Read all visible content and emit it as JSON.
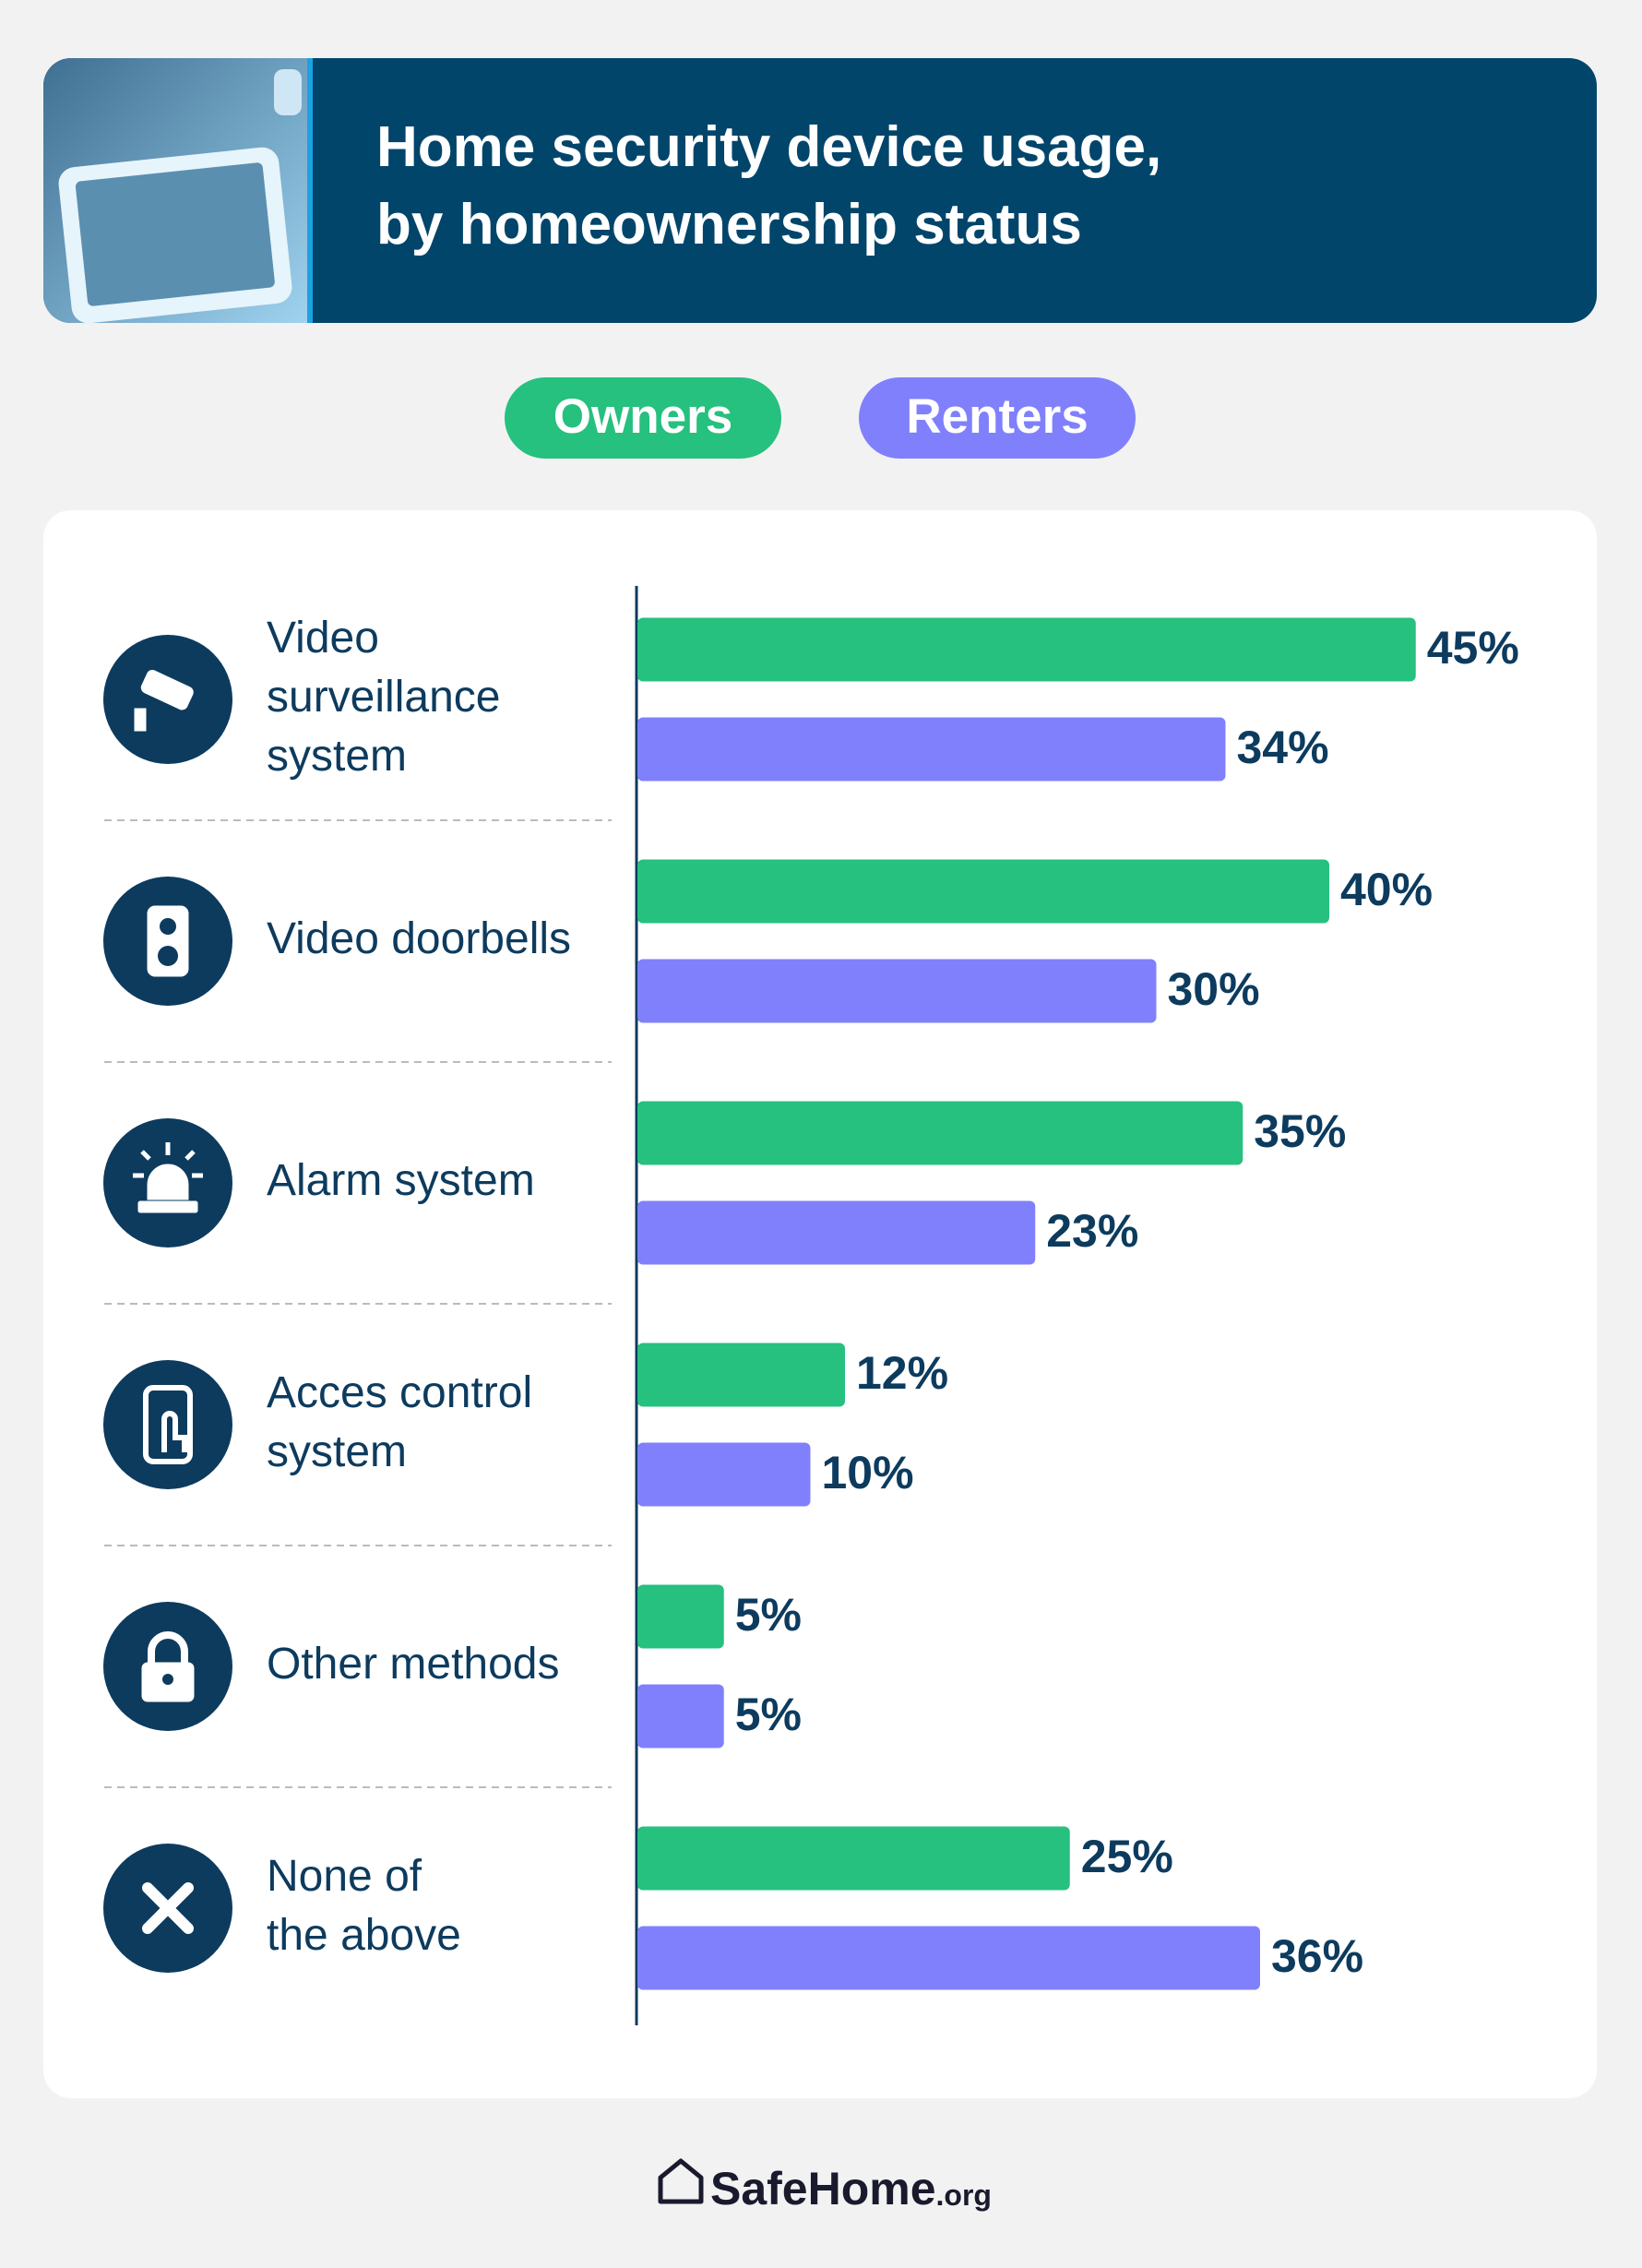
{
  "chart_data": {
    "type": "hbar",
    "title": "Home security device usage,\nby homeownership status",
    "categories": [
      "Video\nsurveillance\nsystem",
      "Video doorbells",
      "Alarm system",
      "Acces control\nsystem",
      "Other methods",
      "None of\nthe above"
    ],
    "series": [
      {
        "name": "Owners",
        "color": "#26c07f",
        "values": [
          45,
          40,
          35,
          12,
          5,
          25
        ],
        "value_labels": [
          "45%",
          "40%",
          "35%",
          "12%",
          "5%",
          "25%"
        ]
      },
      {
        "name": "Renters",
        "color": "#8080fc",
        "values": [
          34,
          30,
          23,
          10,
          5,
          36
        ],
        "value_labels": [
          "34%",
          "30%",
          "23%",
          "10%",
          "5%",
          "36%"
        ]
      }
    ],
    "source": "SafeHome",
    "source_suffix": ".org"
  }
}
